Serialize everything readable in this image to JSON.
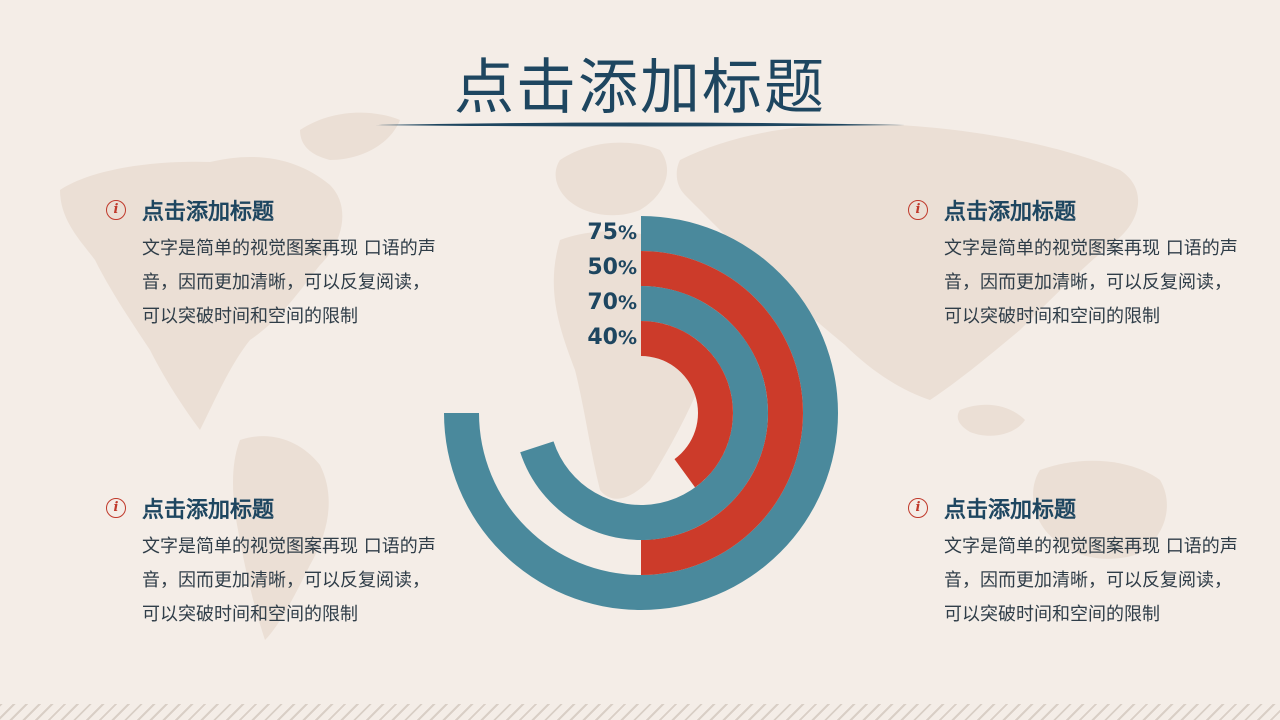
{
  "title": "点击添加标题",
  "blocks": [
    {
      "heading": "点击添加标题",
      "body": "文字是简单的视觉图案再现 口语的声音，因而更加清晰，可以反复阅读，可以突破时间和空间的限制",
      "icon": "info-icon"
    },
    {
      "heading": "点击添加标题",
      "body": "文字是简单的视觉图案再现 口语的声音，因而更加清晰，可以反复阅读，可以突破时间和空间的限制",
      "icon": "info-icon"
    },
    {
      "heading": "点击添加标题",
      "body": "文字是简单的视觉图案再现 口语的声音，因而更加清晰，可以反复阅读，可以突破时间和空间的限制",
      "icon": "info-icon"
    },
    {
      "heading": "点击添加标题",
      "body": "文字是简单的视觉图案再现 口语的声音，因而更加清晰，可以反复阅读，可以突破时间和空间的限制",
      "icon": "info-icon"
    }
  ],
  "chart_data": {
    "type": "radial-bar",
    "series": [
      {
        "label": "75%",
        "value": 75,
        "color": "#4a899c"
      },
      {
        "label": "50%",
        "value": 50,
        "color": "#cc3b2a"
      },
      {
        "label": "70%",
        "value": 70,
        "color": "#4a899c"
      },
      {
        "label": "40%",
        "value": 40,
        "color": "#cc3b2a"
      }
    ]
  },
  "colors": {
    "background": "#f4ede7",
    "title": "#1e4660",
    "teal": "#4a899c",
    "red": "#cc3b2a",
    "map": "#ebdfd4"
  }
}
